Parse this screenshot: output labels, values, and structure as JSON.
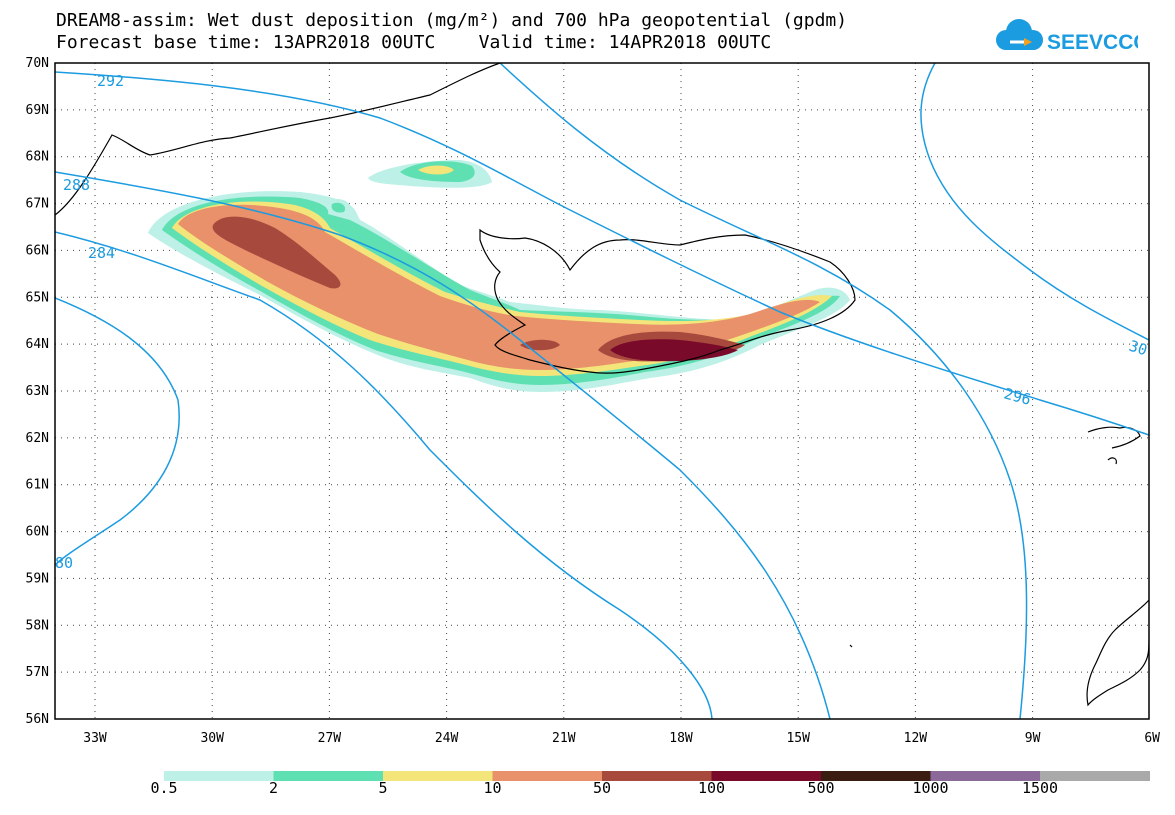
{
  "title_line1": "DREAM8-assim: Wet dust deposition (mg/m²) and 700 hPa geopotential (gpdm)",
  "title_line2": "Forecast base time: 13APR2018 00UTC    Valid time: 14APR2018 00UTC",
  "logo_text": "SEEVCCC",
  "lat_labels": [
    "70N",
    "69N",
    "68N",
    "67N",
    "66N",
    "65N",
    "64N",
    "63N",
    "62N",
    "61N",
    "60N",
    "59N",
    "58N",
    "57N",
    "56N"
  ],
  "lon_labels": [
    "33W",
    "30W",
    "27W",
    "24W",
    "21W",
    "18W",
    "15W",
    "12W",
    "9W",
    "6W"
  ],
  "contour_labels": [
    "292",
    "288",
    "284",
    "296",
    "30",
    "80"
  ],
  "colorbar": {
    "labels": [
      "0.5",
      "2",
      "5",
      "10",
      "50",
      "100",
      "500",
      "1000",
      "1500"
    ],
    "colors": [
      "#bdf0e6",
      "#5ee0b2",
      "#f4e57a",
      "#e8916a",
      "#a8493e",
      "#7a0a2a",
      "#3a1c10",
      "#8b6a9a",
      "#a9a9a9"
    ]
  },
  "colors": {
    "contour": "#1b9be0",
    "frame": "#000000"
  }
}
